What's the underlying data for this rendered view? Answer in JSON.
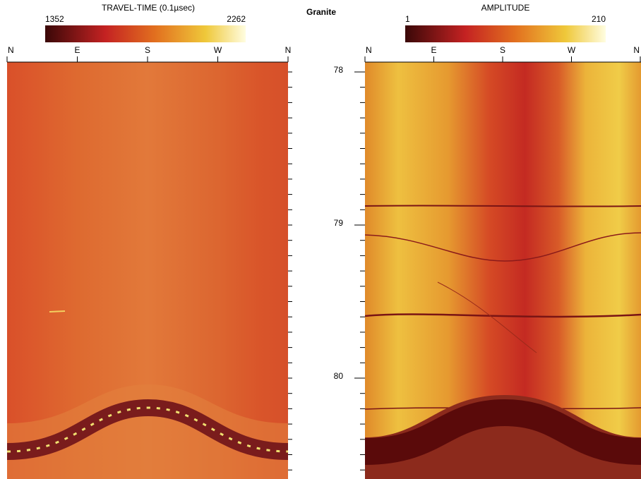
{
  "left_panel": {
    "title": "TRAVEL-TIME (0.1µsec)",
    "colorbar_min": 1352,
    "colorbar_max": 2262,
    "azimuth_labels": [
      "N",
      "E",
      "S",
      "W",
      "N"
    ]
  },
  "center_label": "Granite",
  "depth_axis": {
    "ticks": [
      78,
      79,
      80
    ]
  },
  "right_panel": {
    "title": "AMPLITUDE",
    "colorbar_min": 1,
    "colorbar_max": 210,
    "azimuth_labels": [
      "N",
      "E",
      "S",
      "W",
      "N"
    ]
  }
}
